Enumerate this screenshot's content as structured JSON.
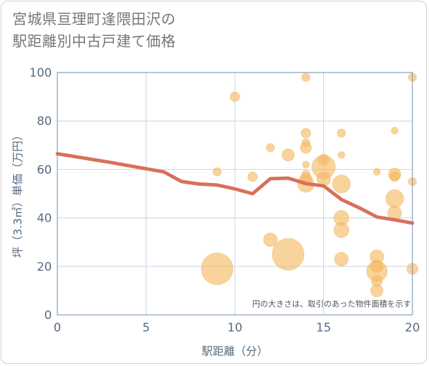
{
  "title_lines": [
    "宮城県亘理町逢隈田沢の",
    "駅距離別中古戸建て価格"
  ],
  "chart_data": {
    "type": "scatter",
    "xlabel": "駅距離（分）",
    "ylabel": "坪（3.3㎡）単価（万円）",
    "xlim": [
      0,
      20
    ],
    "ylim": [
      0,
      100
    ],
    "xticks": [
      0,
      5,
      10,
      15,
      20
    ],
    "yticks": [
      0,
      20,
      40,
      60,
      80,
      100
    ],
    "grid": true,
    "annotation": "円の大きさは、取引のあった物件面積を示す",
    "colors": {
      "bubble": "#f4b860",
      "line": "#d9705a",
      "plot_border": "#6b8bb0",
      "grid": "#c8d4e0",
      "axis_text": "#556b82"
    },
    "bubbles": [
      {
        "x": 9,
        "y": 59,
        "size": 6
      },
      {
        "x": 9,
        "y": 19,
        "size": 23
      },
      {
        "x": 10,
        "y": 90,
        "size": 7
      },
      {
        "x": 11,
        "y": 57,
        "size": 7
      },
      {
        "x": 12,
        "y": 69,
        "size": 6
      },
      {
        "x": 12,
        "y": 31,
        "size": 10
      },
      {
        "x": 13,
        "y": 66,
        "size": 9
      },
      {
        "x": 13,
        "y": 25,
        "size": 23
      },
      {
        "x": 14,
        "y": 98,
        "size": 6
      },
      {
        "x": 14,
        "y": 75,
        "size": 7
      },
      {
        "x": 14,
        "y": 71,
        "size": 6
      },
      {
        "x": 14,
        "y": 69,
        "size": 8
      },
      {
        "x": 14,
        "y": 62,
        "size": 5
      },
      {
        "x": 14,
        "y": 58,
        "size": 6
      },
      {
        "x": 14,
        "y": 56,
        "size": 9
      },
      {
        "x": 14,
        "y": 54,
        "size": 12
      },
      {
        "x": 15,
        "y": 64,
        "size": 8
      },
      {
        "x": 15,
        "y": 61,
        "size": 17
      },
      {
        "x": 15,
        "y": 56,
        "size": 10
      },
      {
        "x": 16,
        "y": 75,
        "size": 6
      },
      {
        "x": 16,
        "y": 66,
        "size": 5
      },
      {
        "x": 16,
        "y": 54,
        "size": 13
      },
      {
        "x": 16,
        "y": 40,
        "size": 11
      },
      {
        "x": 16,
        "y": 35,
        "size": 11
      },
      {
        "x": 16,
        "y": 23,
        "size": 10
      },
      {
        "x": 18,
        "y": 59,
        "size": 5
      },
      {
        "x": 18,
        "y": 24,
        "size": 10
      },
      {
        "x": 18,
        "y": 20,
        "size": 9
      },
      {
        "x": 18,
        "y": 18,
        "size": 15
      },
      {
        "x": 18,
        "y": 14,
        "size": 8
      },
      {
        "x": 18,
        "y": 10,
        "size": 9
      },
      {
        "x": 19,
        "y": 76,
        "size": 5
      },
      {
        "x": 19,
        "y": 58,
        "size": 9
      },
      {
        "x": 19,
        "y": 57,
        "size": 7
      },
      {
        "x": 19,
        "y": 48,
        "size": 13
      },
      {
        "x": 19,
        "y": 42,
        "size": 10
      },
      {
        "x": 20,
        "y": 98,
        "size": 6
      },
      {
        "x": 20,
        "y": 55,
        "size": 6
      },
      {
        "x": 20,
        "y": 19,
        "size": 8
      }
    ],
    "trend": {
      "x": [
        0,
        1,
        2,
        3,
        4,
        5,
        6,
        7,
        8,
        9,
        10,
        11,
        12,
        13,
        14,
        15,
        16,
        17,
        18,
        19,
        20
      ],
      "y": [
        66.5,
        65.3,
        64.1,
        62.9,
        61.6,
        60.3,
        59.0,
        55.0,
        54.0,
        53.6,
        52.0,
        50.0,
        56.2,
        56.4,
        54.2,
        53.2,
        47.6,
        44.2,
        40.4,
        39.2,
        37.9
      ]
    }
  }
}
